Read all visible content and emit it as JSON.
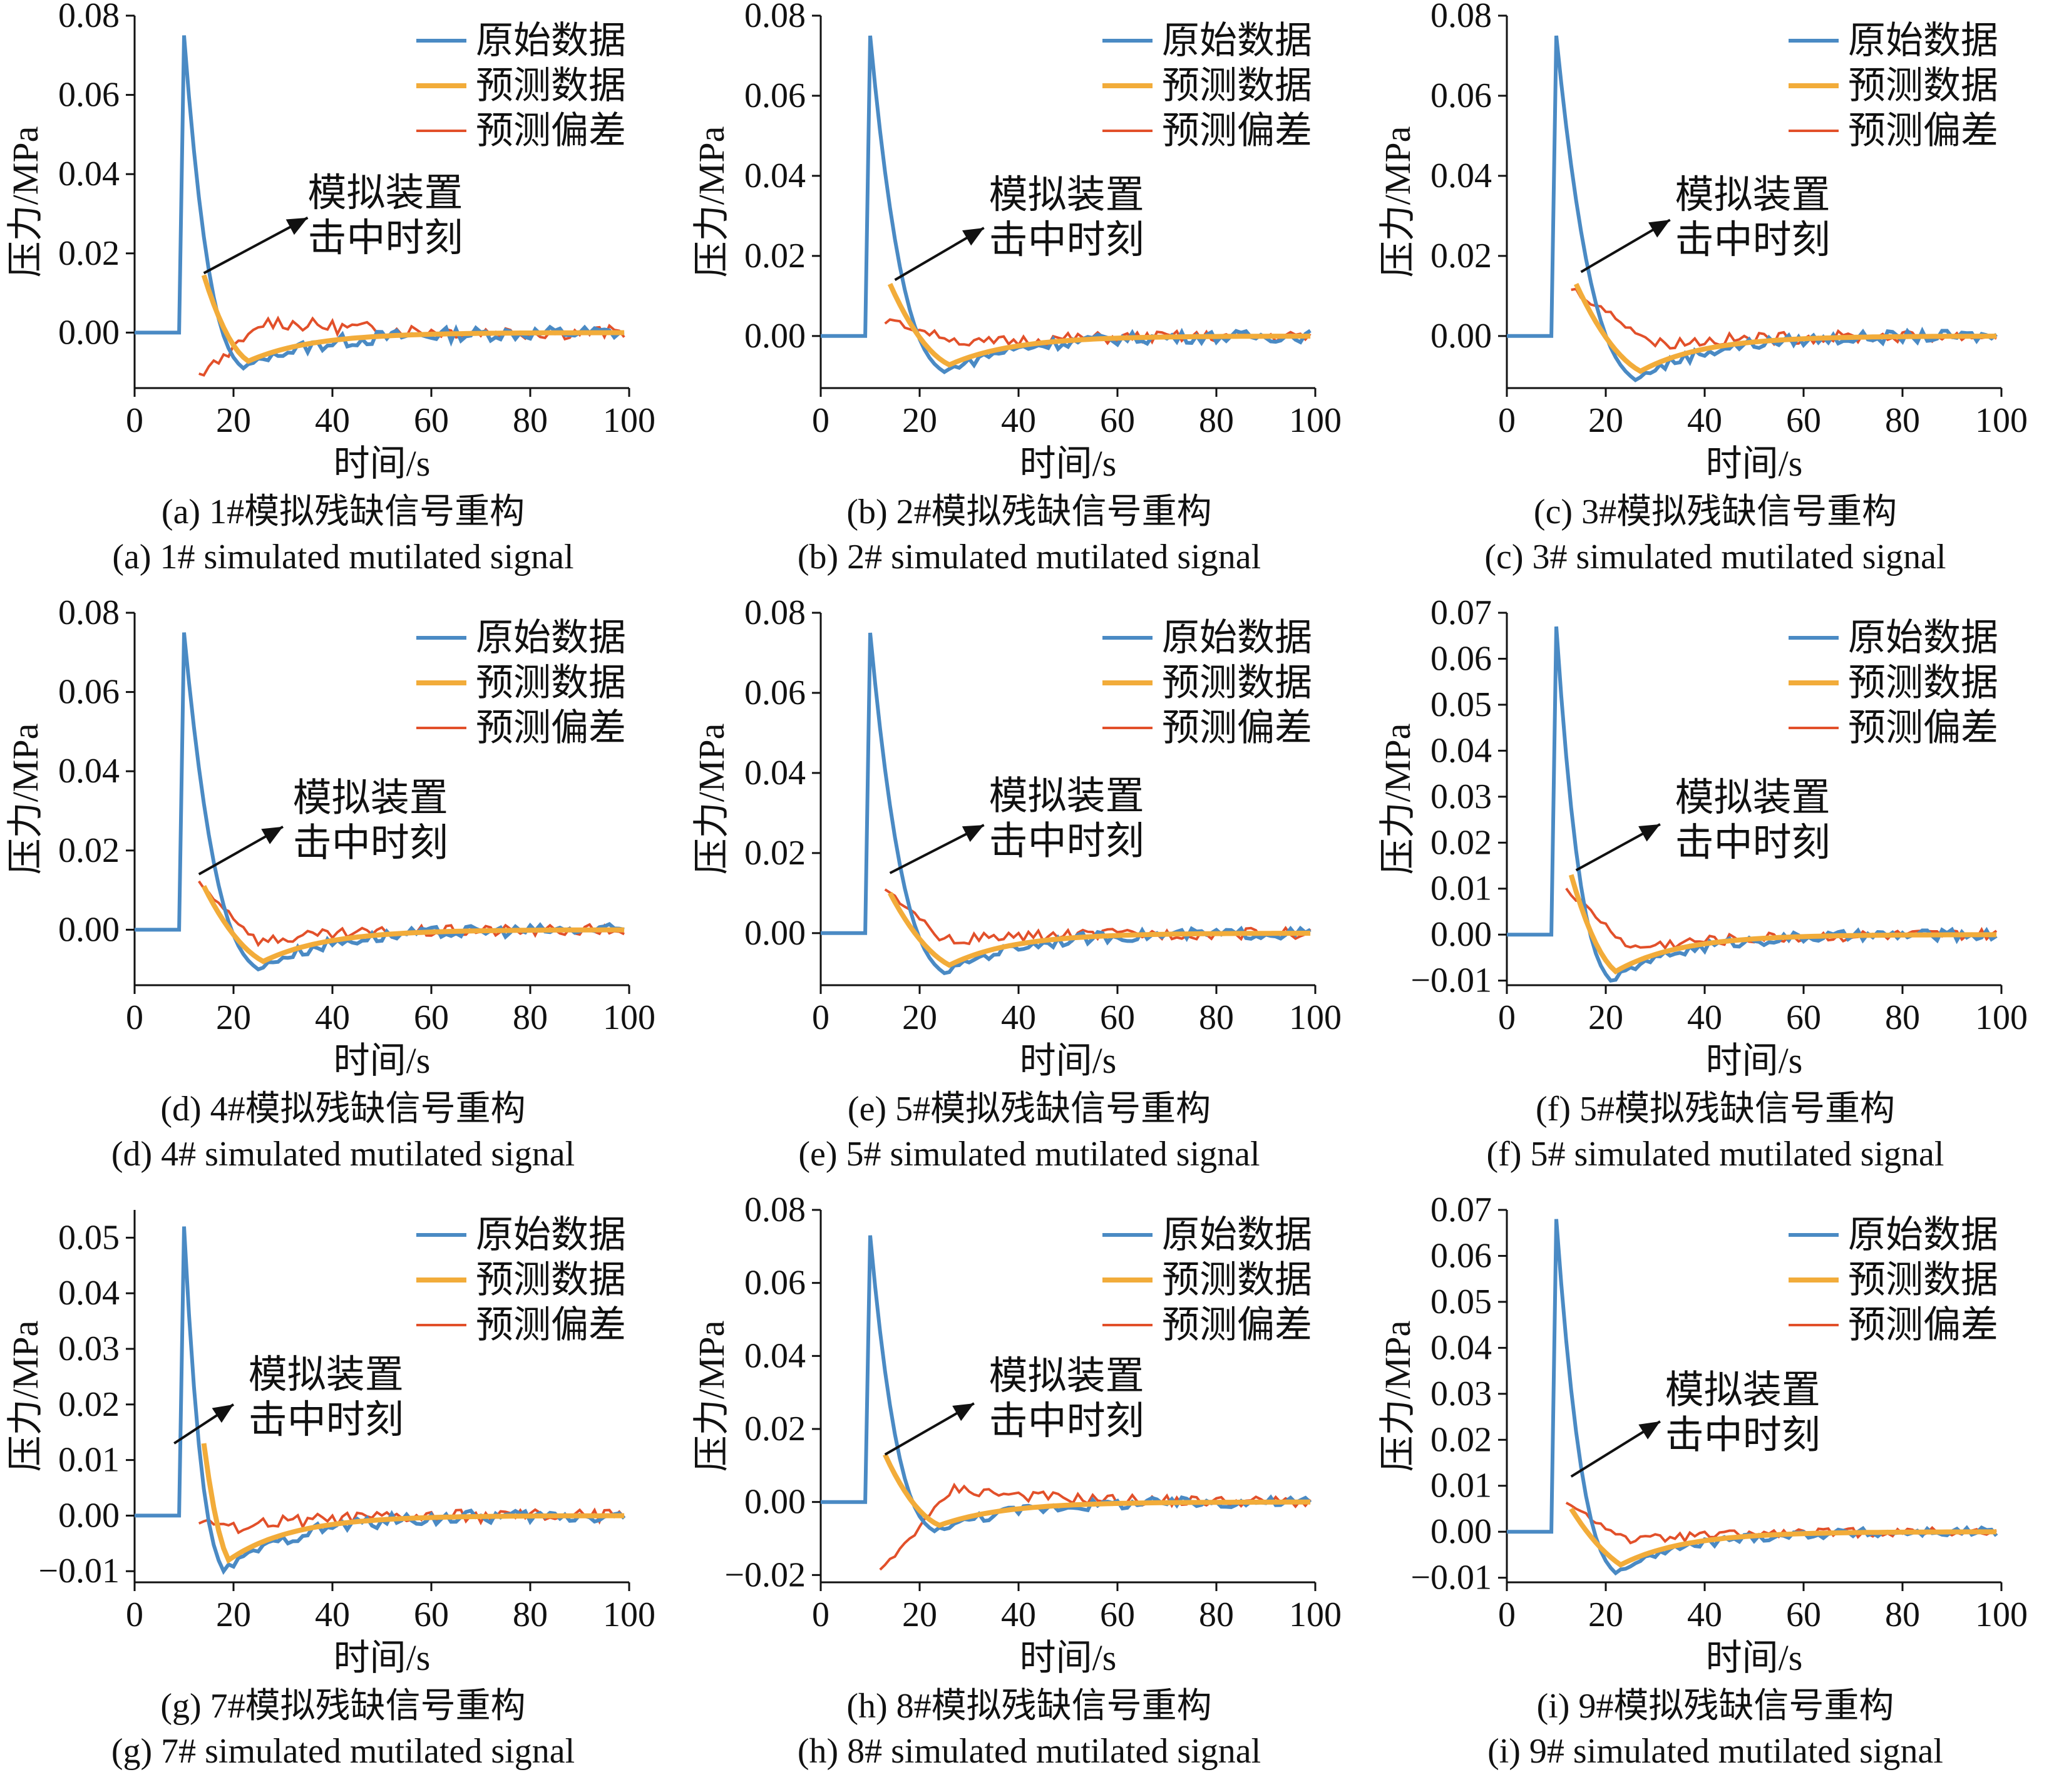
{
  "legend_labels": {
    "original": "原始数据",
    "predicted": "预测数据",
    "error": "预测偏差"
  },
  "annotation_label": [
    "模拟装置",
    "击中时刻"
  ],
  "colors": {
    "original": "#4a8ac4",
    "predicted": "#f2ac3a",
    "error": "#e2502a",
    "axis": "#111111"
  },
  "chart_data": [
    {
      "type": "line",
      "panel": "a",
      "caption_cn": "(a) 1#模拟残缺信号重构",
      "caption_en": "(a) 1# simulated mutilated signal",
      "xlabel": "时间/s",
      "ylabel": "压力/MPa",
      "xlim": [
        0,
        100
      ],
      "ylim": [
        -0.014,
        0.08
      ],
      "xticks": [
        0,
        20,
        40,
        60,
        80,
        100
      ],
      "xticklabels": [
        "0",
        "20",
        "40",
        "60",
        "80",
        "100"
      ],
      "yticks": [
        0,
        0.02,
        0.04,
        0.06,
        0.08
      ],
      "yticklabels": [
        "0.00",
        "0.02",
        "0.04",
        "0.06",
        "0.08"
      ],
      "peak": 0.075,
      "trough": -0.009,
      "trough_x": 22,
      "strike_time": 14,
      "pred_start": 0.0145,
      "error_start": -0.011,
      "error_peak": 0.003,
      "error_peak_x": 27,
      "noise": 0.0018,
      "annotation_arrow": [
        [
          14,
          0.015
        ],
        [
          35,
          0.029
        ]
      ],
      "annotation_text_at": [
        35,
        0.032
      ]
    },
    {
      "type": "line",
      "panel": "b",
      "caption_cn": "(b) 2#模拟残缺信号重构",
      "caption_en": "(b) 2# simulated mutilated signal",
      "xlabel": "时间/s",
      "ylabel": "压力/MPa",
      "xlim": [
        0,
        100
      ],
      "ylim": [
        -0.013,
        0.08
      ],
      "xticks": [
        0,
        20,
        40,
        60,
        80,
        100
      ],
      "xticklabels": [
        "0",
        "20",
        "40",
        "60",
        "80",
        "100"
      ],
      "yticks": [
        0,
        0.02,
        0.04,
        0.06,
        0.08
      ],
      "yticklabels": [
        "0.00",
        "0.02",
        "0.04",
        "0.06",
        "0.08"
      ],
      "peak": 0.075,
      "trough": -0.009,
      "trough_x": 25,
      "strike_time": 14,
      "pred_start": 0.013,
      "error_start": 0.004,
      "error_peak": -0.002,
      "error_peak_x": 30,
      "noise": 0.0015,
      "annotation_arrow": [
        [
          15,
          0.014
        ],
        [
          33,
          0.027
        ]
      ],
      "annotation_text_at": [
        34,
        0.032
      ]
    },
    {
      "type": "line",
      "panel": "c",
      "caption_cn": "(c) 3#模拟残缺信号重构",
      "caption_en": "(c) 3# simulated mutilated signal",
      "xlabel": "时间/s",
      "ylabel": "压力/MPa",
      "xlim": [
        0,
        100
      ],
      "ylim": [
        -0.013,
        0.08
      ],
      "xticks": [
        0,
        20,
        40,
        60,
        80,
        100
      ],
      "xticklabels": [
        "0",
        "20",
        "40",
        "60",
        "80",
        "100"
      ],
      "yticks": [
        0,
        0.02,
        0.04,
        0.06,
        0.08
      ],
      "yticklabels": [
        "0.00",
        "0.02",
        "0.04",
        "0.06",
        "0.08"
      ],
      "peak": 0.075,
      "trough": -0.011,
      "trough_x": 26,
      "strike_time": 14,
      "pred_start": 0.013,
      "error_start": 0.012,
      "error_peak": -0.002,
      "error_peak_x": 30,
      "noise": 0.0015,
      "annotation_arrow": [
        [
          15,
          0.016
        ],
        [
          33,
          0.029
        ]
      ],
      "annotation_text_at": [
        34,
        0.032
      ]
    },
    {
      "type": "line",
      "panel": "d",
      "caption_cn": "(d) 4#模拟残缺信号重构",
      "caption_en": "(d) 4# simulated mutilated signal",
      "xlabel": "时间/s",
      "ylabel": "压力/MPa",
      "xlim": [
        0,
        100
      ],
      "ylim": [
        -0.014,
        0.08
      ],
      "xticks": [
        0,
        20,
        40,
        60,
        80,
        100
      ],
      "xticklabels": [
        "0",
        "20",
        "40",
        "60",
        "80",
        "100"
      ],
      "yticks": [
        0,
        0.02,
        0.04,
        0.06,
        0.08
      ],
      "yticklabels": [
        "0.00",
        "0.02",
        "0.04",
        "0.06",
        "0.08"
      ],
      "peak": 0.075,
      "trough": -0.01,
      "trough_x": 25,
      "strike_time": 14,
      "pred_start": 0.011,
      "error_start": 0.012,
      "error_peak": -0.003,
      "error_peak_x": 25,
      "noise": 0.0015,
      "annotation_arrow": [
        [
          13,
          0.014
        ],
        [
          30,
          0.026
        ]
      ],
      "annotation_text_at": [
        32,
        0.03
      ]
    },
    {
      "type": "line",
      "panel": "e",
      "caption_cn": "(e) 5#模拟残缺信号重构",
      "caption_en": "(e) 5# simulated mutilated signal",
      "xlabel": "时间/s",
      "ylabel": "压力/MPa",
      "xlim": [
        0,
        100
      ],
      "ylim": [
        -0.013,
        0.08
      ],
      "xticks": [
        0,
        20,
        40,
        60,
        80,
        100
      ],
      "xticklabels": [
        "0",
        "20",
        "40",
        "60",
        "80",
        "100"
      ],
      "yticks": [
        0,
        0.02,
        0.04,
        0.06,
        0.08
      ],
      "yticklabels": [
        "0.00",
        "0.02",
        "0.04",
        "0.06",
        "0.08"
      ],
      "peak": 0.075,
      "trough": -0.01,
      "trough_x": 25,
      "strike_time": 14,
      "pred_start": 0.01,
      "error_start": 0.011,
      "error_peak": -0.002,
      "error_peak_x": 25,
      "noise": 0.0014,
      "annotation_arrow": [
        [
          14,
          0.015
        ],
        [
          33,
          0.027
        ]
      ],
      "annotation_text_at": [
        34,
        0.031
      ]
    },
    {
      "type": "line",
      "panel": "f",
      "caption_cn": "(f) 5#模拟残缺信号重构",
      "caption_en": "(f) 5# simulated mutilated signal",
      "xlabel": "时间/s",
      "ylabel": "压力/MPa",
      "xlim": [
        0,
        100
      ],
      "ylim": [
        -0.011,
        0.07
      ],
      "xticks": [
        0,
        20,
        40,
        60,
        80,
        100
      ],
      "xticklabels": [
        "0",
        "20",
        "40",
        "60",
        "80",
        "100"
      ],
      "yticks": [
        -0.01,
        0,
        0.01,
        0.02,
        0.03,
        0.04,
        0.05,
        0.06,
        0.07
      ],
      "yticklabels": [
        "−0.01",
        "0.00",
        "0.01",
        "0.02",
        "0.03",
        "0.04",
        "0.05",
        "0.06",
        "0.07"
      ],
      "peak": 0.067,
      "trough": -0.01,
      "trough_x": 21,
      "strike_time": 13,
      "pred_start": 0.013,
      "error_start": 0.01,
      "error_peak": -0.003,
      "error_peak_x": 25,
      "noise": 0.0012,
      "annotation_arrow": [
        [
          14,
          0.014
        ],
        [
          31,
          0.024
        ]
      ],
      "annotation_text_at": [
        34,
        0.027
      ]
    },
    {
      "type": "line",
      "panel": "g",
      "caption_cn": "(g) 7#模拟残缺信号重构",
      "caption_en": "(g) 7# simulated mutilated signal",
      "xlabel": "时间/s",
      "ylabel": "压力/MPa",
      "xlim": [
        0,
        100
      ],
      "ylim": [
        -0.012,
        0.055
      ],
      "xticks": [
        0,
        20,
        40,
        60,
        80,
        100
      ],
      "xticklabels": [
        "0",
        "20",
        "40",
        "60",
        "80",
        "100"
      ],
      "yticks": [
        -0.01,
        0,
        0.01,
        0.02,
        0.03,
        0.04,
        0.05
      ],
      "yticklabels": [
        "−0.01",
        "0.00",
        "0.01",
        "0.02",
        "0.03",
        "0.04",
        "0.05"
      ],
      "peak": 0.052,
      "trough": -0.01,
      "trough_x": 18,
      "strike_time": 14,
      "pred_start": 0.013,
      "error_start": -0.001,
      "error_peak": -0.002,
      "error_peak_x": 20,
      "noise": 0.0012,
      "annotation_arrow": [
        [
          8,
          0.013
        ],
        [
          20,
          0.02
        ]
      ],
      "annotation_text_at": [
        23,
        0.023
      ]
    },
    {
      "type": "line",
      "panel": "h",
      "caption_cn": "(h) 8#模拟残缺信号重构",
      "caption_en": "(h) 8# simulated mutilated signal",
      "xlabel": "时间/s",
      "ylabel": "压力/MPa",
      "xlim": [
        0,
        100
      ],
      "ylim": [
        -0.022,
        0.08
      ],
      "xticks": [
        0,
        20,
        40,
        60,
        80,
        100
      ],
      "xticklabels": [
        "0",
        "20",
        "40",
        "60",
        "80",
        "100"
      ],
      "yticks": [
        -0.02,
        0,
        0.02,
        0.04,
        0.06,
        0.08
      ],
      "yticklabels": [
        "−0.02",
        "0.00",
        "0.02",
        "0.04",
        "0.06",
        "0.08"
      ],
      "peak": 0.073,
      "trough": -0.008,
      "trough_x": 23,
      "strike_time": 13,
      "pred_start": 0.013,
      "error_start": -0.019,
      "error_peak": 0.004,
      "error_peak_x": 27,
      "noise": 0.0015,
      "annotation_arrow": [
        [
          13,
          0.013
        ],
        [
          31,
          0.027
        ]
      ],
      "annotation_text_at": [
        34,
        0.031
      ]
    },
    {
      "type": "line",
      "panel": "i",
      "caption_cn": "(i) 9#模拟残缺信号重构",
      "caption_en": "(i) 9# simulated mutilated signal",
      "xlabel": "时间/s",
      "ylabel": "压力/MPa",
      "xlim": [
        0,
        100
      ],
      "ylim": [
        -0.011,
        0.07
      ],
      "xticks": [
        0,
        20,
        40,
        60,
        80,
        100
      ],
      "xticklabels": [
        "0",
        "20",
        "40",
        "60",
        "80",
        "100"
      ],
      "yticks": [
        -0.01,
        0,
        0.01,
        0.02,
        0.03,
        0.04,
        0.05,
        0.06,
        0.07
      ],
      "yticklabels": [
        "−0.01",
        "0.00",
        "0.01",
        "0.02",
        "0.03",
        "0.04",
        "0.05",
        "0.06",
        "0.07"
      ],
      "peak": 0.068,
      "trough": -0.009,
      "trough_x": 22,
      "strike_time": 13,
      "pred_start": 0.005,
      "error_start": 0.006,
      "error_peak": -0.002,
      "error_peak_x": 25,
      "noise": 0.001,
      "annotation_arrow": [
        [
          13,
          0.012
        ],
        [
          31,
          0.024
        ]
      ],
      "annotation_text_at": [
        32,
        0.028
      ]
    }
  ]
}
